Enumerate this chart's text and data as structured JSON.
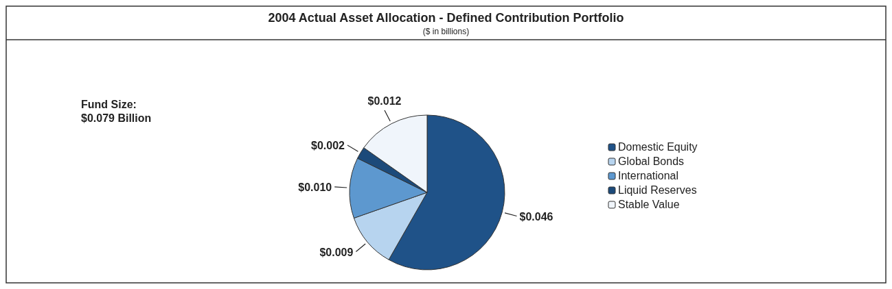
{
  "chart_data": {
    "type": "pie",
    "title": "2004 Actual Asset Allocation - Defined Contribution Portfolio",
    "subtitle": "($ in billions)",
    "categories": [
      "Domestic Equity",
      "Global Bonds",
      "International",
      "Liquid Reserves",
      "Stable Value"
    ],
    "values": [
      0.046,
      0.009,
      0.01,
      0.002,
      0.012
    ],
    "colors": [
      "#1f5288",
      "#b7d4ef",
      "#5d98cf",
      "#1c4a7a",
      "#f0f5fb"
    ],
    "value_labels": [
      "$0.046",
      "$0.009",
      "$0.010",
      "$0.002",
      "$0.012"
    ],
    "annotations": [
      "Fund Size:",
      "$0.079 Billion"
    ],
    "legend": "right"
  }
}
